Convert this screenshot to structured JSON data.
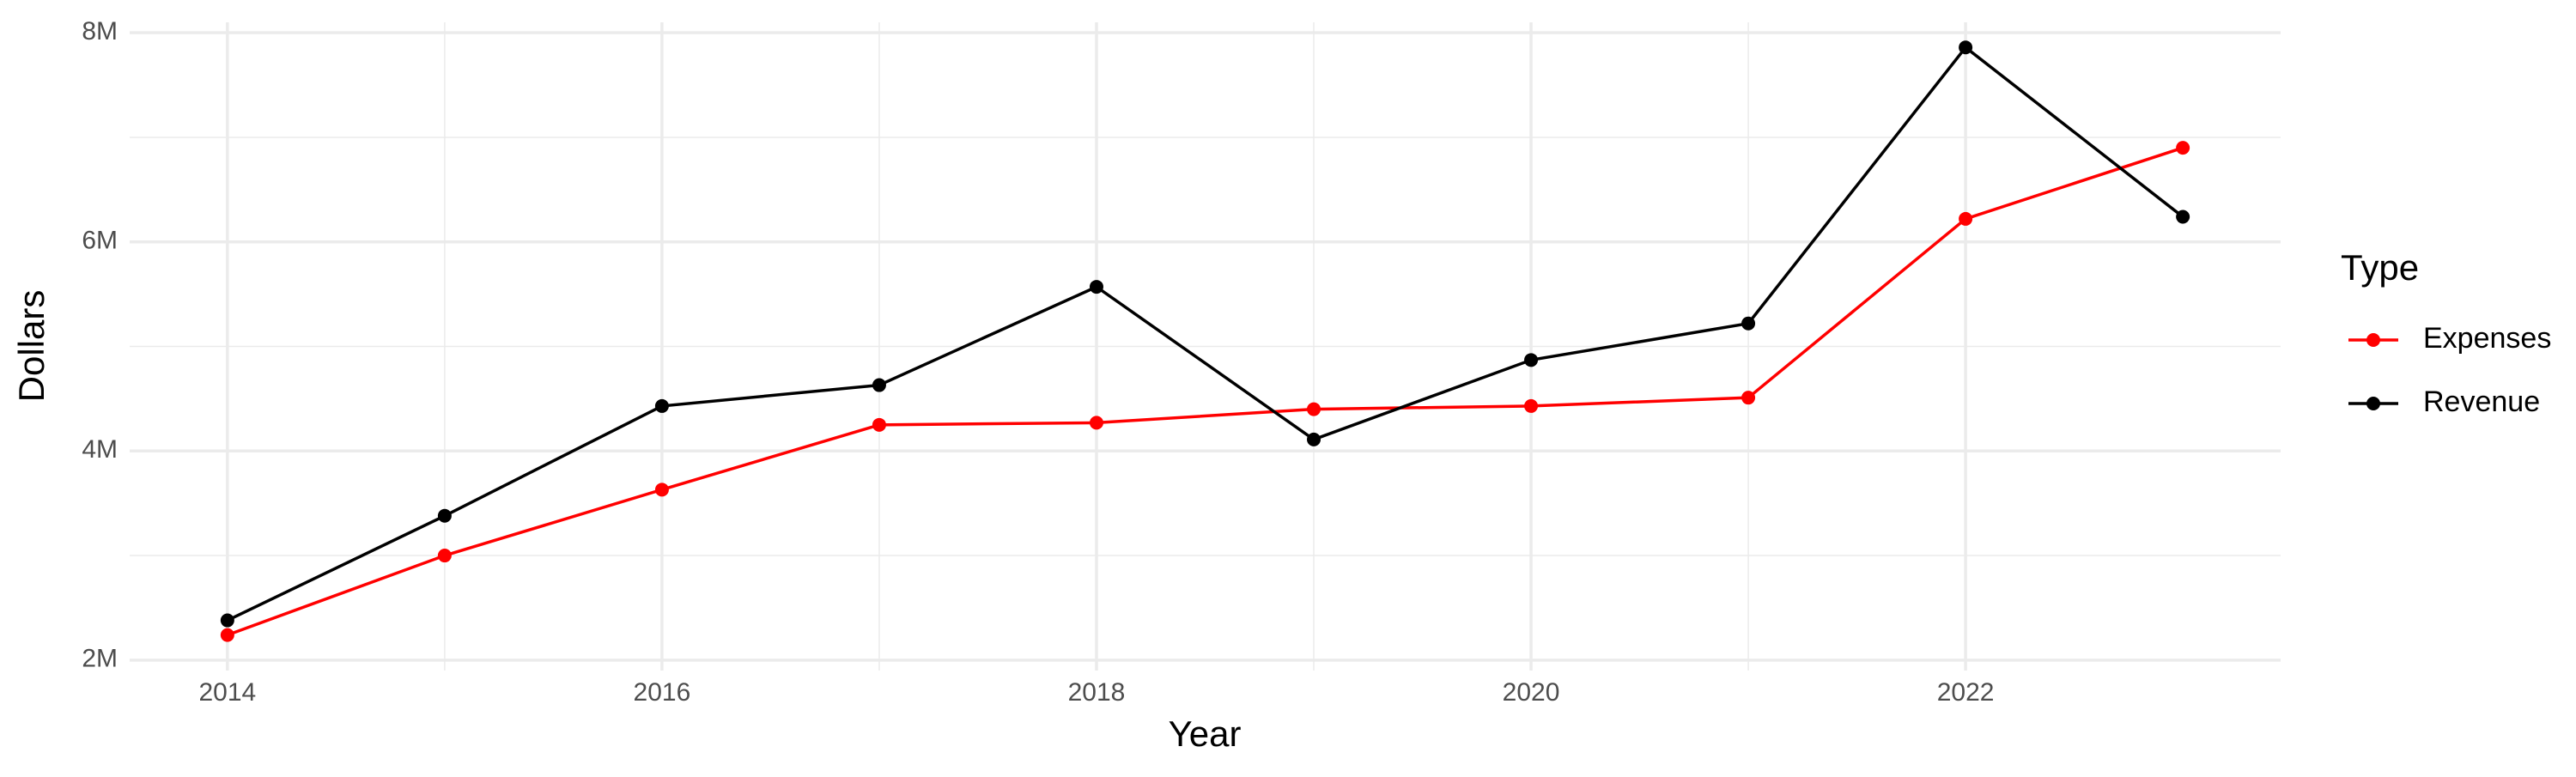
{
  "chart_data": {
    "type": "line",
    "x_label": "Year",
    "y_label": "Dollars",
    "legend_title": "Type",
    "x": [
      2014,
      2015,
      2016,
      2017,
      2018,
      2019,
      2020,
      2021,
      2022,
      2023
    ],
    "series": [
      {
        "name": "Expenses",
        "color": "#ff0000",
        "values": [
          2240000,
          3000000,
          3630000,
          4250000,
          4270000,
          4400000,
          4430000,
          4510000,
          6220000,
          6900000
        ]
      },
      {
        "name": "Revenue",
        "color": "#000000",
        "values": [
          2380000,
          3380000,
          4430000,
          4630000,
          5570000,
          4110000,
          4870000,
          5220000,
          7860000,
          6240000
        ]
      }
    ],
    "xlim": [
      2013.55,
      2023.45
    ],
    "xticks": [
      2014,
      2016,
      2018,
      2020,
      2022
    ],
    "ylim": [
      1900000,
      8100000
    ],
    "yticks": [
      {
        "value": 2000000,
        "label": "2M"
      },
      {
        "value": 4000000,
        "label": "4M"
      },
      {
        "value": 6000000,
        "label": "6M"
      },
      {
        "value": 8000000,
        "label": "8M"
      }
    ],
    "grid": true,
    "legend_position": "right"
  }
}
